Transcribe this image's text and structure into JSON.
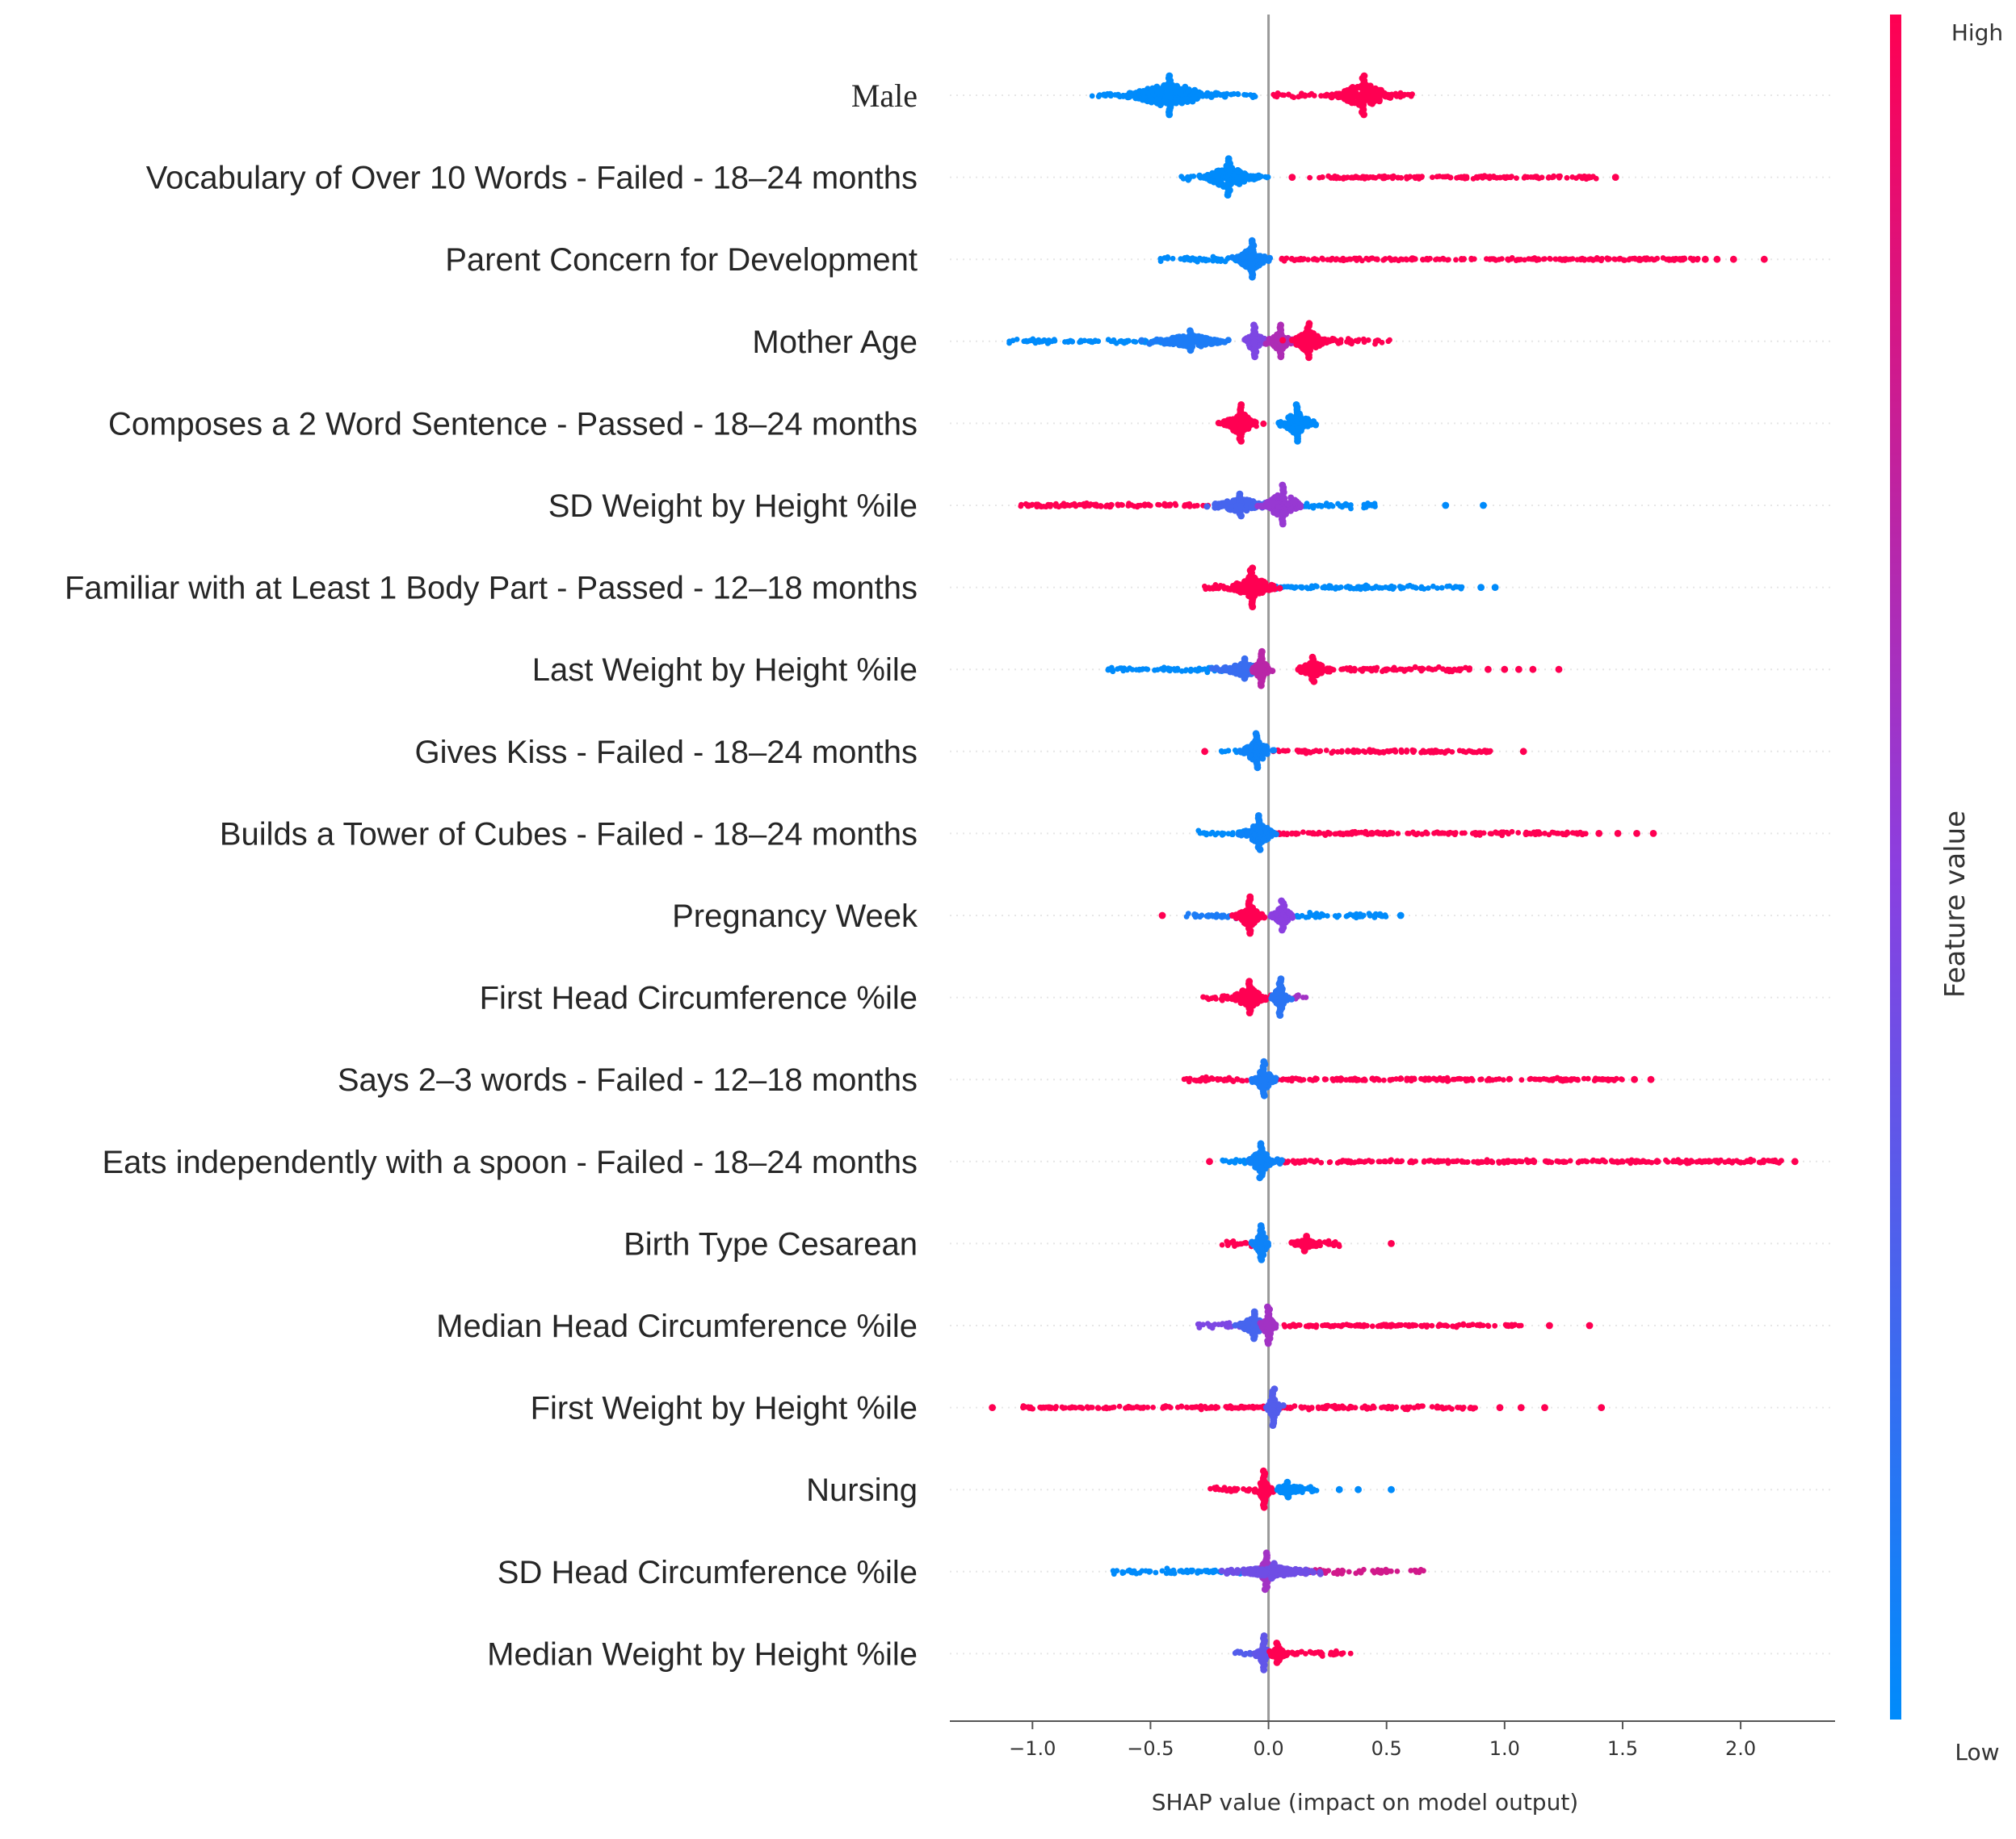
{
  "chart_data": {
    "type": "scatter",
    "subtype": "shap-beeswarm-summary",
    "title": "",
    "xlabel": "SHAP value (impact on model output)",
    "ylabel": "",
    "xlim": [
      -1.35,
      2.4
    ],
    "xticks": [
      -1.0,
      -0.5,
      0.0,
      0.5,
      1.0,
      1.5,
      2.0
    ],
    "xtick_labels": [
      "−1.0",
      "−0.5",
      "0.0",
      "0.5",
      "1.0",
      "1.5",
      "2.0"
    ],
    "colorbar": {
      "title": "Feature value",
      "high_label": "High",
      "low_label": "Low",
      "high_color": "#ff0052",
      "low_color": "#008bfb"
    },
    "features": [
      {
        "name": "Male",
        "font": "serif",
        "clusters": [
          {
            "center": -0.42,
            "spread": 0.33,
            "color": 0.0,
            "bar": 48
          },
          {
            "center": 0.4,
            "spread": 0.22,
            "color": 1.0,
            "bar": 48
          }
        ],
        "tails": [
          {
            "from": -0.75,
            "to": -0.05,
            "color": 0.0
          },
          {
            "from": 0.02,
            "to": 0.61,
            "color": 1.0
          }
        ],
        "outliers": []
      },
      {
        "name": "Vocabulary of Over 10 Words - Failed - 18–24 months",
        "clusters": [
          {
            "center": -0.17,
            "spread": 0.18,
            "color": 0.0,
            "bar": 46
          }
        ],
        "tails": [
          {
            "from": -0.37,
            "to": 0.0,
            "color": 0.0
          },
          {
            "from": 0.17,
            "to": 1.4,
            "color": 1.0
          }
        ],
        "outliers": [
          {
            "x": 0.1,
            "color": 1.0
          },
          {
            "x": 1.47,
            "color": 1.0
          }
        ]
      },
      {
        "name": "Parent Concern for Development",
        "clusters": [
          {
            "center": -0.07,
            "spread": 0.12,
            "color": 0.05,
            "bar": 46
          }
        ],
        "tails": [
          {
            "from": -0.46,
            "to": 0.0,
            "color": 0.0
          },
          {
            "from": 0.05,
            "to": 1.82,
            "color": 1.0
          }
        ],
        "outliers": [
          {
            "x": 1.85,
            "color": 1.0
          },
          {
            "x": 1.9,
            "color": 1.0
          },
          {
            "x": 1.97,
            "color": 1.0
          },
          {
            "x": 2.1,
            "color": 1.0
          }
        ]
      },
      {
        "name": "Mother Age",
        "clusters": [
          {
            "center": -0.33,
            "spread": 0.25,
            "color": 0.1,
            "bar": 26
          },
          {
            "center": -0.06,
            "spread": 0.08,
            "color": 0.45,
            "bar": 40
          },
          {
            "center": 0.05,
            "spread": 0.08,
            "color": 0.65,
            "bar": 40
          },
          {
            "center": 0.17,
            "spread": 0.12,
            "color": 1.0,
            "bar": 44
          }
        ],
        "tails": [
          {
            "from": -1.12,
            "to": -0.35,
            "color": 0.0
          },
          {
            "from": 0.25,
            "to": 0.53,
            "color": 1.0
          }
        ],
        "outliers": []
      },
      {
        "name": "Composes a 2 Word Sentence - Passed - 18–24 months",
        "clusters": [
          {
            "center": -0.12,
            "spread": 0.12,
            "color": 1.0,
            "bar": 46
          },
          {
            "center": 0.12,
            "spread": 0.12,
            "color": 0.0,
            "bar": 46
          }
        ],
        "tails": [
          {
            "from": -0.24,
            "to": -0.05,
            "color": 1.0
          },
          {
            "from": 0.05,
            "to": 0.21,
            "color": 0.0
          }
        ],
        "outliers": []
      },
      {
        "name": "SD Weight by Height %ile",
        "clusters": [
          {
            "center": -0.12,
            "spread": 0.2,
            "color": 0.25,
            "bar": 28
          },
          {
            "center": 0.06,
            "spread": 0.15,
            "color": 0.55,
            "bar": 50
          }
        ],
        "tails": [
          {
            "from": -1.05,
            "to": -0.25,
            "color": 1.0
          },
          {
            "from": 0.15,
            "to": 0.46,
            "color": 0.0
          }
        ],
        "outliers": [
          {
            "x": 0.75,
            "color": 0.0
          },
          {
            "x": 0.91,
            "color": 0.0
          }
        ]
      },
      {
        "name": "Familiar with at Least 1 Body Part - Passed - 12–18 months",
        "clusters": [
          {
            "center": -0.07,
            "spread": 0.16,
            "color": 1.0,
            "bar": 48
          }
        ],
        "tails": [
          {
            "from": -0.28,
            "to": 0.0,
            "color": 1.0
          },
          {
            "from": 0.0,
            "to": 0.82,
            "color": 0.0
          }
        ],
        "outliers": [
          {
            "x": 0.9,
            "color": 0.0
          },
          {
            "x": 0.96,
            "color": 0.0
          }
        ]
      },
      {
        "name": "Last Weight by Height %ile",
        "clusters": [
          {
            "center": -0.1,
            "spread": 0.18,
            "color": 0.2,
            "bar": 26
          },
          {
            "center": -0.03,
            "spread": 0.06,
            "color": 0.7,
            "bar": 44
          },
          {
            "center": 0.19,
            "spread": 0.12,
            "color": 1.0,
            "bar": 30
          }
        ],
        "tails": [
          {
            "from": -0.68,
            "to": -0.15,
            "color": 0.0
          },
          {
            "from": 0.25,
            "to": 0.87,
            "color": 1.0
          }
        ],
        "outliers": [
          {
            "x": 0.93,
            "color": 1.0
          },
          {
            "x": 1.0,
            "color": 1.0
          },
          {
            "x": 1.06,
            "color": 1.0
          },
          {
            "x": 1.12,
            "color": 1.0
          },
          {
            "x": 1.23,
            "color": 1.0
          }
        ]
      },
      {
        "name": "Gives Kiss - Failed - 18–24 months",
        "clusters": [
          {
            "center": -0.05,
            "spread": 0.12,
            "color": 0.05,
            "bar": 44
          }
        ],
        "tails": [
          {
            "from": -0.2,
            "to": 0.0,
            "color": 0.0
          },
          {
            "from": 0.02,
            "to": 0.95,
            "color": 1.0
          }
        ],
        "outliers": [
          {
            "x": -0.27,
            "color": 1.0
          },
          {
            "x": 1.08,
            "color": 1.0
          }
        ]
      },
      {
        "name": "Builds a Tower of Cubes - Failed - 18–24 months",
        "clusters": [
          {
            "center": -0.04,
            "spread": 0.12,
            "color": 0.05,
            "bar": 44
          }
        ],
        "tails": [
          {
            "from": -0.3,
            "to": 0.0,
            "color": 0.0
          },
          {
            "from": 0.02,
            "to": 1.35,
            "color": 1.0
          }
        ],
        "outliers": [
          {
            "x": 1.4,
            "color": 1.0
          },
          {
            "x": 1.48,
            "color": 1.0
          },
          {
            "x": 1.56,
            "color": 1.0
          },
          {
            "x": 1.63,
            "color": 1.0
          }
        ]
      },
      {
        "name": "Pregnancy Week",
        "clusters": [
          {
            "center": -0.08,
            "spread": 0.1,
            "color": 1.0,
            "bar": 46
          },
          {
            "center": 0.06,
            "spread": 0.08,
            "color": 0.5,
            "bar": 36
          }
        ],
        "tails": [
          {
            "from": -0.35,
            "to": -0.1,
            "color": 0.1
          },
          {
            "from": 0.1,
            "to": 0.5,
            "color": 0.0
          }
        ],
        "outliers": [
          {
            "x": -0.45,
            "color": 1.0
          },
          {
            "x": 0.56,
            "color": 0.0
          }
        ]
      },
      {
        "name": "First Head Circumference %ile",
        "clusters": [
          {
            "center": -0.08,
            "spread": 0.14,
            "color": 1.0,
            "bar": 40
          },
          {
            "center": 0.05,
            "spread": 0.06,
            "color": 0.15,
            "bar": 46
          }
        ],
        "tails": [
          {
            "from": -0.28,
            "to": -0.05,
            "color": 1.0
          },
          {
            "from": 0.0,
            "to": 0.16,
            "color": 0.6
          }
        ],
        "outliers": []
      },
      {
        "name": "Says 2–3 words - Failed - 12–18 months",
        "clusters": [
          {
            "center": -0.02,
            "spread": 0.08,
            "color": 0.1,
            "bar": 44
          }
        ],
        "tails": [
          {
            "from": -0.36,
            "to": -0.05,
            "color": 1.0
          },
          {
            "from": 0.02,
            "to": 1.5,
            "color": 1.0
          }
        ],
        "outliers": [
          {
            "x": 1.55,
            "color": 1.0
          },
          {
            "x": 1.62,
            "color": 1.0
          }
        ]
      },
      {
        "name": "Eats independently with a spoon - Failed - 18–24 months",
        "clusters": [
          {
            "center": -0.03,
            "spread": 0.1,
            "color": 0.05,
            "bar": 44
          }
        ],
        "tails": [
          {
            "from": -0.2,
            "to": 0.0,
            "color": 0.0
          },
          {
            "from": 0.03,
            "to": 2.18,
            "color": 1.0
          }
        ],
        "outliers": [
          {
            "x": -0.25,
            "color": 1.0
          },
          {
            "x": 2.23,
            "color": 1.0
          }
        ]
      },
      {
        "name": "Birth Type Cesarean",
        "clusters": [
          {
            "center": -0.03,
            "spread": 0.06,
            "color": 0.05,
            "bar": 44
          },
          {
            "center": 0.16,
            "spread": 0.08,
            "color": 1.0,
            "bar": 18
          }
        ],
        "tails": [
          {
            "from": -0.2,
            "to": -0.05,
            "color": 1.0
          },
          {
            "from": 0.2,
            "to": 0.32,
            "color": 1.0
          }
        ],
        "outliers": [
          {
            "x": 0.52,
            "color": 1.0
          }
        ]
      },
      {
        "name": "Median Head Circumference %ile",
        "clusters": [
          {
            "center": -0.06,
            "spread": 0.12,
            "color": 0.25,
            "bar": 34
          },
          {
            "center": 0.0,
            "spread": 0.05,
            "color": 0.6,
            "bar": 46
          }
        ],
        "tails": [
          {
            "from": -0.3,
            "to": -0.05,
            "color": 0.45
          },
          {
            "from": 0.05,
            "to": 1.07,
            "color": 1.0
          }
        ],
        "outliers": [
          {
            "x": 1.19,
            "color": 1.0
          },
          {
            "x": 1.36,
            "color": 1.0
          }
        ]
      },
      {
        "name": "First Weight by Height %ile",
        "clusters": [
          {
            "center": 0.02,
            "spread": 0.05,
            "color": 0.3,
            "bar": 46
          }
        ],
        "tails": [
          {
            "from": -1.05,
            "to": 0.0,
            "color": 1.0
          },
          {
            "from": 0.03,
            "to": 0.88,
            "color": 1.0
          }
        ],
        "outliers": [
          {
            "x": -1.17,
            "color": 1.0
          },
          {
            "x": 0.98,
            "color": 1.0
          },
          {
            "x": 1.07,
            "color": 1.0
          },
          {
            "x": 1.17,
            "color": 1.0
          },
          {
            "x": 1.41,
            "color": 1.0
          }
        ]
      },
      {
        "name": "Nursing",
        "clusters": [
          {
            "center": -0.02,
            "spread": 0.05,
            "color": 1.0,
            "bar": 46
          },
          {
            "center": 0.08,
            "spread": 0.08,
            "color": 0.0,
            "bar": 18
          }
        ],
        "tails": [
          {
            "from": -0.25,
            "to": -0.05,
            "color": 1.0
          },
          {
            "from": 0.1,
            "to": 0.22,
            "color": 0.0
          }
        ],
        "outliers": [
          {
            "x": 0.3,
            "color": 0.0
          },
          {
            "x": 0.38,
            "color": 0.0
          },
          {
            "x": 0.52,
            "color": 0.0
          }
        ]
      },
      {
        "name": "SD Head Circumference %ile",
        "clusters": [
          {
            "center": -0.01,
            "spread": 0.06,
            "color": 0.6,
            "bar": 46
          },
          {
            "center": 0.02,
            "spread": 0.3,
            "color": 0.4,
            "bar": 20
          }
        ],
        "tails": [
          {
            "from": -0.66,
            "to": -0.1,
            "color": 0.0
          },
          {
            "from": 0.08,
            "to": 0.66,
            "color": 0.8
          }
        ],
        "outliers": []
      },
      {
        "name": "Median Weight by Height %ile",
        "clusters": [
          {
            "center": -0.02,
            "spread": 0.05,
            "color": 0.35,
            "bar": 44
          },
          {
            "center": 0.04,
            "spread": 0.06,
            "color": 1.0,
            "bar": 26
          }
        ],
        "tails": [
          {
            "from": -0.16,
            "to": -0.05,
            "color": 0.3
          },
          {
            "from": 0.1,
            "to": 0.35,
            "color": 1.0
          }
        ],
        "outliers": []
      }
    ]
  }
}
